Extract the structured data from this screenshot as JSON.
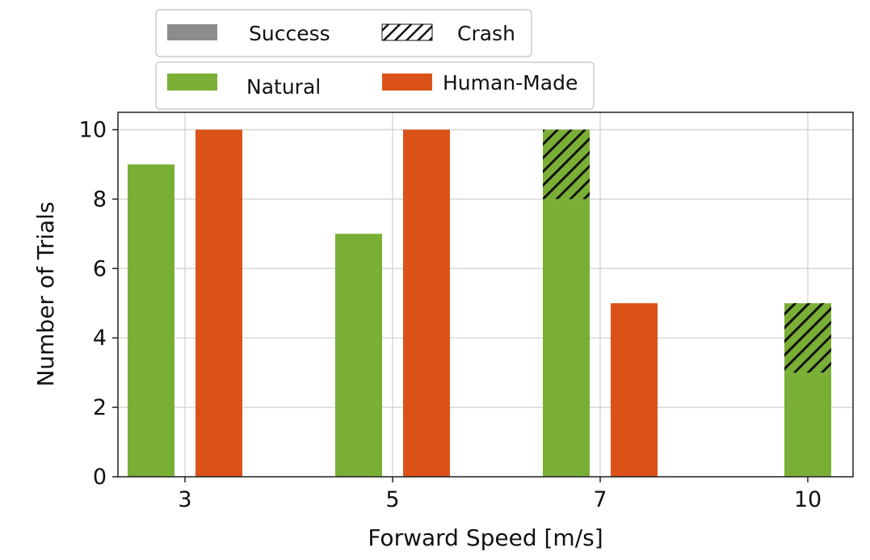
{
  "chart_data": {
    "type": "bar",
    "stacked": true,
    "xlabel": "Forward Speed [m/s]",
    "ylabel": "Number of Trials",
    "ylim": [
      0,
      10.5
    ],
    "yticks": [
      0,
      2,
      4,
      6,
      8,
      10
    ],
    "categories": [
      "3",
      "5",
      "7",
      "10"
    ],
    "grid": true,
    "environments": [
      {
        "name": "Natural",
        "color": "#7aaf36",
        "success": [
          9,
          7,
          8,
          3
        ],
        "crash": [
          0,
          0,
          2,
          2
        ]
      },
      {
        "name": "Human-Made",
        "color": "#db5219",
        "success": [
          10,
          10,
          5,
          0
        ],
        "crash": [
          0,
          0,
          0,
          0
        ]
      }
    ],
    "legend_outcome": [
      {
        "label": "Success",
        "pattern": "solid",
        "color": "#8c8c8c"
      },
      {
        "label": "Crash",
        "pattern": "hatched",
        "color": "#ffffff"
      }
    ],
    "legend_environment": [
      {
        "label": "Natural",
        "color": "#7aaf36"
      },
      {
        "label": "Human-Made",
        "color": "#db5219"
      }
    ],
    "legend_placement": "top"
  }
}
